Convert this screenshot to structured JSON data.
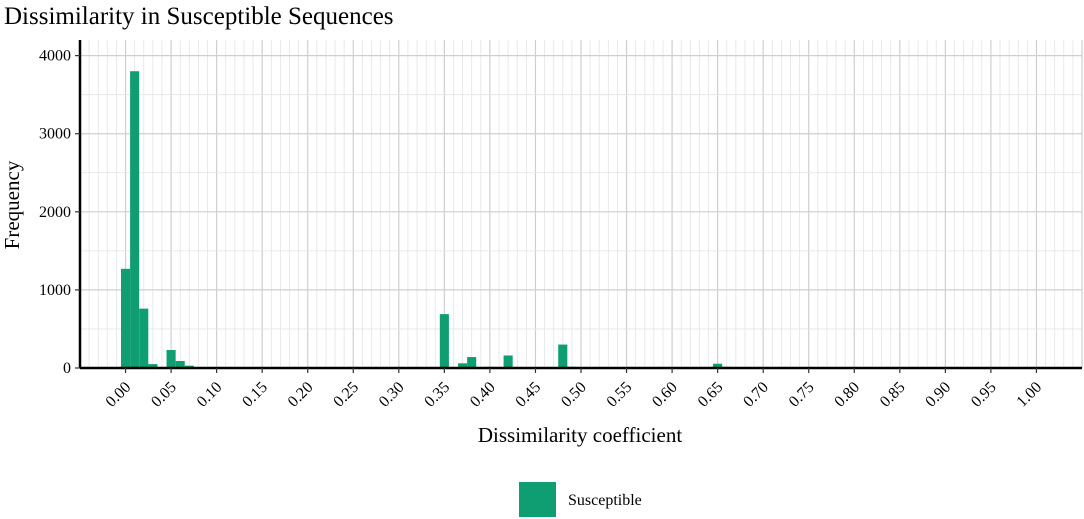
{
  "chart_data": {
    "type": "bar",
    "title": "Dissimilarity in Susceptible Sequences",
    "xlabel": "Dissimilarity coefficient",
    "ylabel": "Frequency",
    "xlim": [
      -0.05,
      1.05
    ],
    "ylim": [
      0,
      4200
    ],
    "bin_width": 0.01,
    "x_ticks": [
      0.0,
      0.05,
      0.1,
      0.15,
      0.2,
      0.25,
      0.3,
      0.35,
      0.4,
      0.45,
      0.5,
      0.55,
      0.6,
      0.65,
      0.7,
      0.75,
      0.8,
      0.85,
      0.9,
      0.95,
      1.0
    ],
    "x_tick_labels": [
      "0.00",
      "0.05",
      "0.10",
      "0.15",
      "0.20",
      "0.25",
      "0.30",
      "0.35",
      "0.40",
      "0.45",
      "0.50",
      "0.55",
      "0.60",
      "0.65",
      "0.70",
      "0.75",
      "0.80",
      "0.85",
      "0.90",
      "0.95",
      "1.00"
    ],
    "y_ticks": [
      0,
      1000,
      2000,
      3000,
      4000
    ],
    "y_tick_labels": [
      "0",
      "1000",
      "2000",
      "3000",
      "4000"
    ],
    "grid": true,
    "legend_position": "bottom",
    "series": [
      {
        "name": "Susceptible",
        "color": "#0e9e72",
        "x": [
          0.0,
          0.01,
          0.02,
          0.03,
          0.05,
          0.06,
          0.07,
          0.15,
          0.35,
          0.37,
          0.38,
          0.4,
          0.42,
          0.48,
          0.49,
          0.5,
          0.65,
          0.66
        ],
        "values": [
          1270,
          3800,
          760,
          50,
          230,
          90,
          30,
          8,
          690,
          60,
          140,
          15,
          160,
          300,
          15,
          5,
          55,
          15
        ]
      }
    ]
  }
}
